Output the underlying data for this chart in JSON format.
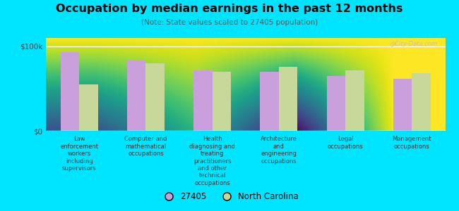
{
  "title": "Occupation by median earnings in the past 12 months",
  "subtitle": "(Note: State values scaled to 27405 population)",
  "categories": [
    "Law\nenforcement\nworkers\nincluding\nsupervisors",
    "Computer and\nmathematical\noccupations",
    "Health\ndiagnosing and\ntreating\npractitioners\nand other\ntechnical\noccupations",
    "Architecture\nand\nengineering\noccupations",
    "Legal\noccupations",
    "Management\noccupations"
  ],
  "values_27405": [
    93000,
    83000,
    72000,
    70000,
    65000,
    62000
  ],
  "values_nc": [
    55000,
    80000,
    70000,
    76000,
    72000,
    68000
  ],
  "color_27405": "#c9a0dc",
  "color_nc": "#c8d89a",
  "background_outer": "#00e5ff",
  "ylim": [
    0,
    110000
  ],
  "ytick_labels": [
    "$0",
    "$100k"
  ],
  "ytick_values": [
    0,
    100000
  ],
  "legend_27405": "27405",
  "legend_nc": "North Carolina",
  "watermark": "@City-Data.com"
}
